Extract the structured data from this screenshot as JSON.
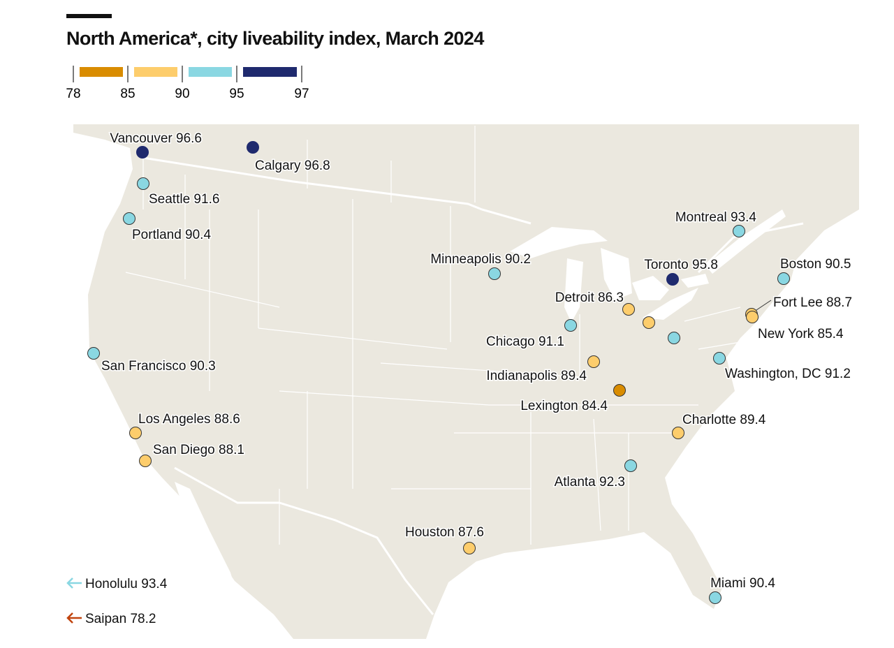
{
  "title": "North America*, city liveability index, March 2024",
  "legend": {
    "ticks": [
      "78",
      "85",
      "90",
      "95",
      "97"
    ],
    "bins": [
      {
        "range": [
          78,
          85
        ],
        "color": "#d98c00"
      },
      {
        "range": [
          85,
          90
        ],
        "color": "#fdcd6c"
      },
      {
        "range": [
          90,
          95
        ],
        "color": "#8ad7e2"
      },
      {
        "range": [
          95,
          97
        ],
        "color": "#1f2a6e"
      }
    ]
  },
  "colors": {
    "land": "#ebe8df",
    "borders": "#ffffff",
    "water": "#ffffff",
    "saipan_arrow": "#c1440e"
  },
  "cities": [
    {
      "name": "Vancouver",
      "value": 96.6,
      "label": "Vancouver 96.6"
    },
    {
      "name": "Calgary",
      "value": 96.8,
      "label": "Calgary 96.8"
    },
    {
      "name": "Seattle",
      "value": 91.6,
      "label": "Seattle 91.6"
    },
    {
      "name": "Portland",
      "value": 90.4,
      "label": "Portland 90.4"
    },
    {
      "name": "Montreal",
      "value": 93.4,
      "label": "Montreal 93.4"
    },
    {
      "name": "Minneapolis",
      "value": 90.2,
      "label": "Minneapolis 90.2"
    },
    {
      "name": "Toronto",
      "value": 95.8,
      "label": "Toronto 95.8"
    },
    {
      "name": "Boston",
      "value": 90.5,
      "label": "Boston 90.5"
    },
    {
      "name": "Detroit",
      "value": 86.3,
      "label": "Detroit 86.3"
    },
    {
      "name": "Fort Lee",
      "value": 88.7,
      "label": "Fort Lee 88.7"
    },
    {
      "name": "New York",
      "value": 85.4,
      "label": "New York 85.4"
    },
    {
      "name": "Chicago",
      "value": 91.1,
      "label": "Chicago 91.1"
    },
    {
      "name": "Washington, DC",
      "value": 91.2,
      "label": "Washington, DC 91.2"
    },
    {
      "name": "San Francisco",
      "value": 90.3,
      "label": "San Francisco 90.3"
    },
    {
      "name": "Indianapolis",
      "value": 89.4,
      "label": "Indianapolis 89.4"
    },
    {
      "name": "Lexington",
      "value": 84.4,
      "label": "Lexington 84.4"
    },
    {
      "name": "Los Angeles",
      "value": 88.6,
      "label": "Los Angeles 88.6"
    },
    {
      "name": "Charlotte",
      "value": 89.4,
      "label": "Charlotte 89.4"
    },
    {
      "name": "San Diego",
      "value": 88.1,
      "label": "San Diego 88.1"
    },
    {
      "name": "Atlanta",
      "value": 92.3,
      "label": "Atlanta 92.3"
    },
    {
      "name": "Houston",
      "value": 87.6,
      "label": "Houston 87.6"
    },
    {
      "name": "Miami",
      "value": 90.4,
      "label": "Miami 90.4"
    }
  ],
  "unlabeled_markers": [
    {
      "bin": "85-90",
      "color": "#fdcd6c"
    },
    {
      "bin": "90-95",
      "color": "#8ad7e2"
    }
  ],
  "offmap": [
    {
      "name": "Honolulu",
      "value": 93.4,
      "label": "Honolulu 93.4",
      "arrow_color": "#8ad7e2",
      "icon": "arrow-left-icon"
    },
    {
      "name": "Saipan",
      "value": 78.2,
      "label": "Saipan 78.2",
      "arrow_color": "#c1440e",
      "icon": "arrow-left-icon"
    }
  ]
}
